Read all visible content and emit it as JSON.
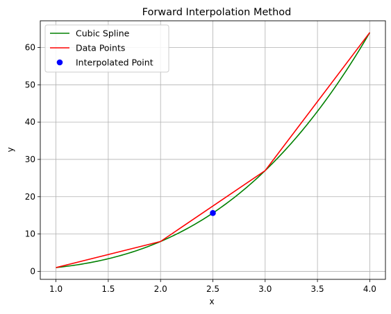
{
  "chart_data": {
    "type": "line",
    "title": "Forward Interpolation Method",
    "xlabel": "x",
    "ylabel": "y",
    "xlim": [
      0.85,
      4.15
    ],
    "ylim": [
      -2.15,
      67.15
    ],
    "x_ticks": [
      1.0,
      1.5,
      2.0,
      2.5,
      3.0,
      3.5,
      4.0
    ],
    "x_tick_labels": [
      "1.0",
      "1.5",
      "2.0",
      "2.5",
      "3.0",
      "3.5",
      "4.0"
    ],
    "y_ticks": [
      0,
      10,
      20,
      30,
      40,
      50,
      60
    ],
    "y_tick_labels": [
      "0",
      "10",
      "20",
      "30",
      "40",
      "50",
      "60"
    ],
    "grid": true,
    "legend_position": "top-left",
    "series": [
      {
        "name": "Cubic Spline",
        "kind": "line",
        "color": "#008000",
        "x": [
          1.0,
          1.25,
          1.5,
          1.75,
          2.0,
          2.25,
          2.5,
          2.75,
          3.0,
          3.25,
          3.5,
          3.75,
          4.0
        ],
        "y": [
          1.0,
          1.95,
          3.375,
          5.36,
          8.0,
          11.39,
          15.625,
          20.8,
          27.0,
          34.33,
          42.875,
          52.73,
          64.0
        ]
      },
      {
        "name": "Data Points",
        "kind": "line",
        "color": "#ff0000",
        "x": [
          1,
          2,
          3,
          4
        ],
        "y": [
          1,
          8,
          27,
          64
        ]
      },
      {
        "name": "Interpolated Point",
        "kind": "scatter",
        "color": "#0000ff",
        "x": [
          2.5
        ],
        "y": [
          15.625
        ]
      }
    ]
  }
}
